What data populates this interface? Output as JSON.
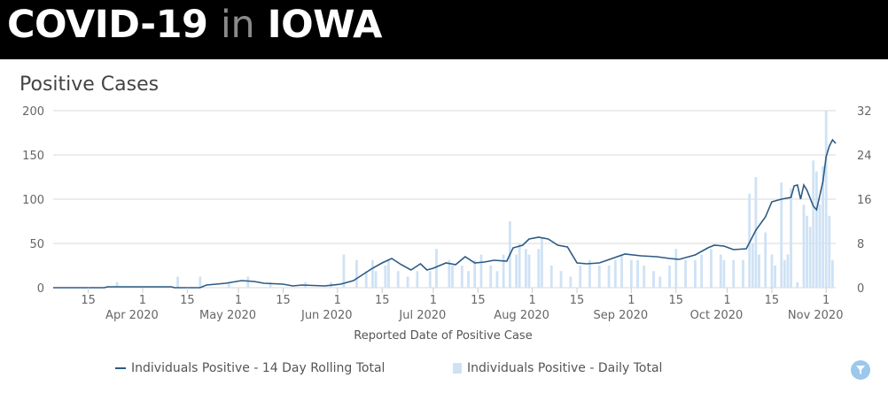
{
  "header": {
    "title_part1": "COVID-19",
    "title_part2": "in",
    "title_part3": "IOWA"
  },
  "colors": {
    "banner_bg": "#000000",
    "line": "#2b5a84",
    "bars": "#cfe2f5",
    "grid": "#d9d9d9",
    "filter_button": "#9bc8ec"
  },
  "icons": {
    "filter": "filter-icon"
  },
  "chart_data": {
    "type": "bar",
    "title": "Positive Cases",
    "xlabel": "Reported Date of Positive Case",
    "ylabel": "",
    "x_axis": {
      "type": "date",
      "range": [
        "2020-03-04",
        "2020-11-04"
      ],
      "ticks": [
        {
          "date": "2020-03-15",
          "label": "15"
        },
        {
          "date": "2020-04-01",
          "label": "1",
          "month_label": "Apr 2020"
        },
        {
          "date": "2020-04-15",
          "label": "15"
        },
        {
          "date": "2020-05-01",
          "label": "1",
          "month_label": "May 2020"
        },
        {
          "date": "2020-05-15",
          "label": "15"
        },
        {
          "date": "2020-06-01",
          "label": "1",
          "month_label": "Jun 2020"
        },
        {
          "date": "2020-06-15",
          "label": "15"
        },
        {
          "date": "2020-07-01",
          "label": "1",
          "month_label": "Jul 2020"
        },
        {
          "date": "2020-07-15",
          "label": "15"
        },
        {
          "date": "2020-08-01",
          "label": "1",
          "month_label": "Aug 2020"
        },
        {
          "date": "2020-08-15",
          "label": "15"
        },
        {
          "date": "2020-09-01",
          "label": "1",
          "month_label": "Sep 2020"
        },
        {
          "date": "2020-09-15",
          "label": "15"
        },
        {
          "date": "2020-10-01",
          "label": "1",
          "month_label": "Oct 2020"
        },
        {
          "date": "2020-10-15",
          "label": "15"
        },
        {
          "date": "2020-11-01",
          "label": "1",
          "month_label": "Nov 2020"
        }
      ]
    },
    "y_axis_left": {
      "min": 0,
      "max": 200,
      "ticks": [
        "0",
        "50",
        "100",
        "150",
        "200"
      ]
    },
    "y_axis_right": {
      "min": 0,
      "max": 32,
      "ticks": [
        "0",
        "8",
        "16",
        "24",
        "32"
      ]
    },
    "grid": true,
    "legend_position": "bottom",
    "series": [
      {
        "name": "Individuals Positive - 14 Day Rolling Total",
        "kind": "line",
        "axis": "left",
        "points": [
          [
            "2020-03-04",
            0
          ],
          [
            "2020-03-20",
            0
          ],
          [
            "2020-03-21",
            1
          ],
          [
            "2020-04-10",
            1
          ],
          [
            "2020-04-11",
            0
          ],
          [
            "2020-04-19",
            0
          ],
          [
            "2020-04-21",
            3
          ],
          [
            "2020-04-27",
            5
          ],
          [
            "2020-05-02",
            8
          ],
          [
            "2020-05-06",
            7
          ],
          [
            "2020-05-09",
            5
          ],
          [
            "2020-05-15",
            4
          ],
          [
            "2020-05-18",
            2
          ],
          [
            "2020-05-21",
            3
          ],
          [
            "2020-05-28",
            2
          ],
          [
            "2020-06-02",
            4
          ],
          [
            "2020-06-06",
            8
          ],
          [
            "2020-06-09",
            15
          ],
          [
            "2020-06-12",
            22
          ],
          [
            "2020-06-15",
            28
          ],
          [
            "2020-06-18",
            33
          ],
          [
            "2020-06-21",
            26
          ],
          [
            "2020-06-24",
            20
          ],
          [
            "2020-06-27",
            27
          ],
          [
            "2020-06-29",
            20
          ],
          [
            "2020-07-01",
            22
          ],
          [
            "2020-07-05",
            28
          ],
          [
            "2020-07-08",
            26
          ],
          [
            "2020-07-11",
            35
          ],
          [
            "2020-07-14",
            28
          ],
          [
            "2020-07-17",
            29
          ],
          [
            "2020-07-20",
            31
          ],
          [
            "2020-07-24",
            30
          ],
          [
            "2020-07-26",
            45
          ],
          [
            "2020-07-29",
            48
          ],
          [
            "2020-07-31",
            55
          ],
          [
            "2020-08-03",
            57
          ],
          [
            "2020-08-06",
            55
          ],
          [
            "2020-08-09",
            48
          ],
          [
            "2020-08-12",
            46
          ],
          [
            "2020-08-15",
            28
          ],
          [
            "2020-08-18",
            27
          ],
          [
            "2020-08-22",
            28
          ],
          [
            "2020-08-26",
            33
          ],
          [
            "2020-08-30",
            38
          ],
          [
            "2020-09-04",
            36
          ],
          [
            "2020-09-09",
            35
          ],
          [
            "2020-09-13",
            33
          ],
          [
            "2020-09-16",
            32
          ],
          [
            "2020-09-21",
            37
          ],
          [
            "2020-09-25",
            45
          ],
          [
            "2020-09-27",
            48
          ],
          [
            "2020-09-30",
            47
          ],
          [
            "2020-10-03",
            43
          ],
          [
            "2020-10-07",
            44
          ],
          [
            "2020-10-10",
            65
          ],
          [
            "2020-10-13",
            80
          ],
          [
            "2020-10-15",
            97
          ],
          [
            "2020-10-18",
            100
          ],
          [
            "2020-10-21",
            102
          ],
          [
            "2020-10-22",
            115
          ],
          [
            "2020-10-23",
            116
          ],
          [
            "2020-10-24",
            100
          ],
          [
            "2020-10-25",
            116
          ],
          [
            "2020-10-26",
            110
          ],
          [
            "2020-10-28",
            92
          ],
          [
            "2020-10-29",
            88
          ],
          [
            "2020-10-31",
            120
          ],
          [
            "2020-11-01",
            148
          ],
          [
            "2020-11-02",
            160
          ],
          [
            "2020-11-03",
            167
          ],
          [
            "2020-11-04",
            163
          ]
        ]
      },
      {
        "name": "Individuals Positive - Daily Total",
        "kind": "bar",
        "axis": "right",
        "points": [
          [
            "2020-03-24",
            1
          ],
          [
            "2020-04-12",
            2
          ],
          [
            "2020-04-19",
            2
          ],
          [
            "2020-04-28",
            1
          ],
          [
            "2020-05-04",
            2
          ],
          [
            "2020-05-11",
            1
          ],
          [
            "2020-05-22",
            1
          ],
          [
            "2020-05-30",
            1
          ],
          [
            "2020-06-03",
            6
          ],
          [
            "2020-06-07",
            5
          ],
          [
            "2020-06-10",
            3
          ],
          [
            "2020-06-12",
            5
          ],
          [
            "2020-06-13",
            3
          ],
          [
            "2020-06-16",
            4
          ],
          [
            "2020-06-17",
            5
          ],
          [
            "2020-06-20",
            3
          ],
          [
            "2020-06-23",
            2
          ],
          [
            "2020-06-26",
            3
          ],
          [
            "2020-06-30",
            3
          ],
          [
            "2020-07-02",
            7
          ],
          [
            "2020-07-06",
            5
          ],
          [
            "2020-07-07",
            4
          ],
          [
            "2020-07-10",
            4
          ],
          [
            "2020-07-12",
            3
          ],
          [
            "2020-07-14",
            5
          ],
          [
            "2020-07-16",
            6
          ],
          [
            "2020-07-19",
            4
          ],
          [
            "2020-07-21",
            3
          ],
          [
            "2020-07-23",
            6
          ],
          [
            "2020-07-25",
            12
          ],
          [
            "2020-07-27",
            6
          ],
          [
            "2020-07-28",
            8
          ],
          [
            "2020-07-30",
            7
          ],
          [
            "2020-07-31",
            6
          ],
          [
            "2020-08-03",
            7
          ],
          [
            "2020-08-04",
            9
          ],
          [
            "2020-08-07",
            4
          ],
          [
            "2020-08-10",
            3
          ],
          [
            "2020-08-13",
            2
          ],
          [
            "2020-08-16",
            4
          ],
          [
            "2020-08-19",
            5
          ],
          [
            "2020-08-22",
            4
          ],
          [
            "2020-08-25",
            4
          ],
          [
            "2020-08-27",
            5
          ],
          [
            "2020-08-29",
            6
          ],
          [
            "2020-09-01",
            5
          ],
          [
            "2020-09-03",
            5
          ],
          [
            "2020-09-05",
            4
          ],
          [
            "2020-09-08",
            3
          ],
          [
            "2020-09-10",
            2
          ],
          [
            "2020-09-13",
            4
          ],
          [
            "2020-09-15",
            7
          ],
          [
            "2020-09-18",
            5
          ],
          [
            "2020-09-21",
            5
          ],
          [
            "2020-09-23",
            6
          ],
          [
            "2020-09-26",
            7
          ],
          [
            "2020-09-29",
            6
          ],
          [
            "2020-09-30",
            5
          ],
          [
            "2020-10-03",
            5
          ],
          [
            "2020-10-06",
            5
          ],
          [
            "2020-10-08",
            17
          ],
          [
            "2020-10-09",
            8
          ],
          [
            "2020-10-10",
            20
          ],
          [
            "2020-10-11",
            6
          ],
          [
            "2020-10-13",
            10
          ],
          [
            "2020-10-15",
            6
          ],
          [
            "2020-10-16",
            4
          ],
          [
            "2020-10-18",
            19
          ],
          [
            "2020-10-19",
            5
          ],
          [
            "2020-10-20",
            6
          ],
          [
            "2020-10-21",
            18
          ],
          [
            "2020-10-23",
            1
          ],
          [
            "2020-10-25",
            15
          ],
          [
            "2020-10-26",
            13
          ],
          [
            "2020-10-27",
            11
          ],
          [
            "2020-10-28",
            23
          ],
          [
            "2020-10-29",
            21
          ],
          [
            "2020-10-30",
            15
          ],
          [
            "2020-10-31",
            22
          ],
          [
            "2020-11-01",
            32
          ],
          [
            "2020-11-02",
            13
          ],
          [
            "2020-11-03",
            5
          ]
        ]
      }
    ]
  },
  "legend": {
    "line_label": "Individuals Positive - 14 Day Rolling Total",
    "bar_label": "Individuals Positive - Daily Total"
  }
}
